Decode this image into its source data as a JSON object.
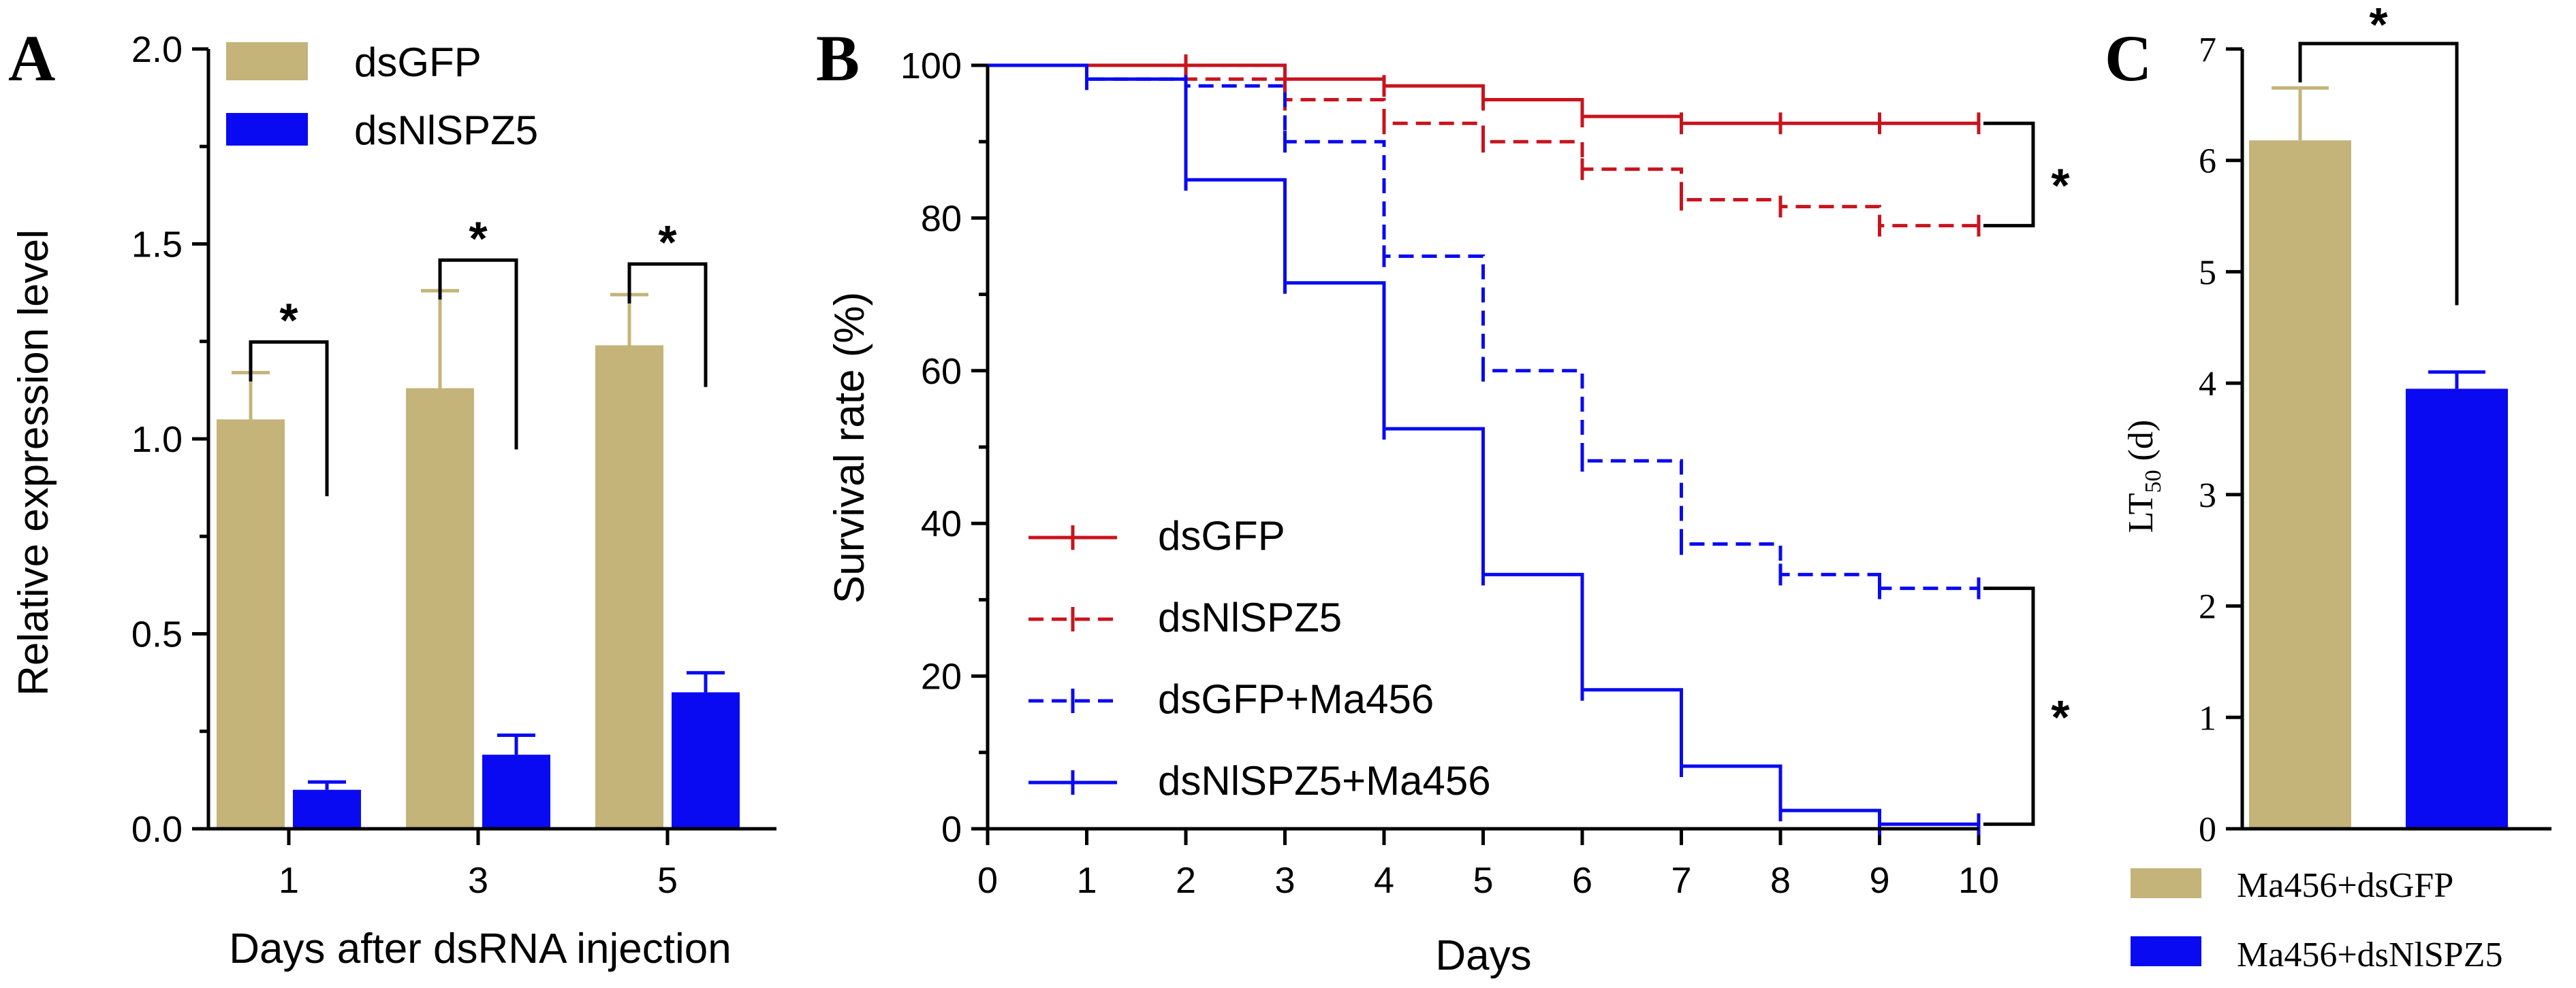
{
  "colors": {
    "tan": "#c4b47a",
    "blue": "#0a0af2",
    "red": "#c8141e",
    "axis": "#000000"
  },
  "chart_data": [
    {
      "panel": "A",
      "type": "bar",
      "xlabel": "Days after dsRNA injection",
      "ylabel": "Relative expression level",
      "ylim": [
        0,
        2.0
      ],
      "yticks": [
        "0.0",
        "0.5",
        "1.0",
        "1.5",
        "2.0"
      ],
      "categories": [
        "1",
        "3",
        "5"
      ],
      "legend_position": "top-left",
      "series": [
        {
          "name": "dsGFP",
          "color": "#c4b47a",
          "values": [
            1.05,
            1.13,
            1.24
          ],
          "errors": [
            0.12,
            0.25,
            0.13
          ]
        },
        {
          "name": "dsNlSPZ5",
          "color": "#0a0af2",
          "values": [
            0.1,
            0.19,
            0.35
          ],
          "errors": [
            0.02,
            0.05,
            0.05
          ]
        }
      ],
      "significance": [
        "*",
        "*",
        "*"
      ]
    },
    {
      "panel": "B",
      "type": "line",
      "xlabel": "Days",
      "ylabel": "Survival rate (%)",
      "xlim": [
        0,
        10
      ],
      "ylim": [
        0,
        100
      ],
      "xticks": [
        "0",
        "1",
        "2",
        "3",
        "4",
        "5",
        "6",
        "7",
        "8",
        "9",
        "10"
      ],
      "yticks": [
        "0",
        "20",
        "40",
        "60",
        "80",
        "100"
      ],
      "legend_position": "bottom-left",
      "series": [
        {
          "name": "dsGFP",
          "color": "#c8141e",
          "dashed": false,
          "x": [
            0,
            1,
            2,
            3,
            4,
            5,
            6,
            7,
            8,
            9,
            10
          ],
          "y": [
            100,
            100,
            100,
            98.2,
            97.3,
            95.5,
            93.3,
            92.4,
            92.4,
            92.4,
            92.4
          ]
        },
        {
          "name": "dsNlSPZ5",
          "color": "#c8141e",
          "dashed": true,
          "x": [
            0,
            1,
            2,
            3,
            4,
            5,
            6,
            7,
            8,
            9,
            10
          ],
          "y": [
            100,
            100,
            98.2,
            95.5,
            92.4,
            90,
            86.4,
            82.4,
            81.5,
            79,
            79
          ]
        },
        {
          "name": "dsGFP+Ma456",
          "color": "#0a0af2",
          "dashed": true,
          "x": [
            0,
            1,
            2,
            3,
            4,
            5,
            6,
            7,
            8,
            9,
            10
          ],
          "y": [
            100,
            98.2,
            97.3,
            90,
            75,
            60,
            48.2,
            37.3,
            33.3,
            31.5,
            31.5
          ]
        },
        {
          "name": "dsNlSPZ5+Ma456",
          "color": "#0a0af2",
          "dashed": false,
          "x": [
            0,
            1,
            2,
            3,
            4,
            5,
            6,
            7,
            8,
            9,
            10
          ],
          "y": [
            100,
            98.2,
            85,
            71.5,
            52.4,
            33.3,
            18.2,
            8.2,
            2.4,
            0.6,
            0.6
          ]
        }
      ],
      "significance": [
        "*",
        "*"
      ]
    },
    {
      "panel": "C",
      "type": "bar",
      "ylabel_main": "LT",
      "ylabel_sub": "50",
      "ylabel_unit": " (d)",
      "ylim": [
        0,
        7
      ],
      "yticks": [
        "0",
        "1",
        "2",
        "3",
        "4",
        "5",
        "6",
        "7"
      ],
      "legend_position": "bottom",
      "series": [
        {
          "name": "Ma456+dsGFP",
          "color": "#c4b47a",
          "value": 6.18,
          "error": 0.47
        },
        {
          "name": "Ma456+dsNlSPZ5",
          "color": "#0a0af2",
          "value": 3.95,
          "error": 0.15
        }
      ],
      "significance": "*"
    }
  ]
}
